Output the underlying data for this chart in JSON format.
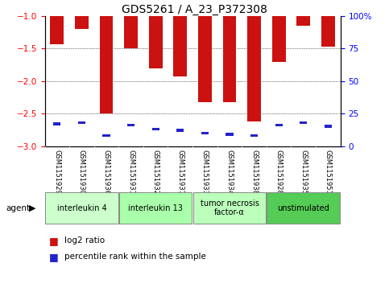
{
  "title": "GDS5261 / A_23_P372308",
  "samples": [
    "GSM1151929",
    "GSM1151930",
    "GSM1151936",
    "GSM1151931",
    "GSM1151932",
    "GSM1151937",
    "GSM1151933",
    "GSM1151934",
    "GSM1151938",
    "GSM1151928",
    "GSM1151935",
    "GSM1151951"
  ],
  "log2_ratio": [
    -1.43,
    -1.2,
    -2.5,
    -1.5,
    -1.8,
    -1.93,
    -2.32,
    -2.33,
    -2.62,
    -1.7,
    -1.15,
    -1.47
  ],
  "percentile_rank": [
    17,
    18,
    8,
    16,
    13,
    12,
    10,
    9,
    8,
    16,
    18,
    15
  ],
  "bar_color": "#cc1111",
  "pct_color": "#2222cc",
  "ylim_left": [
    -3.0,
    -1.0
  ],
  "ylim_right": [
    0,
    100
  ],
  "yticks_left": [
    -3.0,
    -2.5,
    -2.0,
    -1.5,
    -1.0
  ],
  "yticks_right": [
    0,
    25,
    50,
    75,
    100
  ],
  "groups": [
    {
      "label": "interleukin 4",
      "start": 0,
      "end": 3,
      "color": "#ccffcc"
    },
    {
      "label": "interleukin 13",
      "start": 3,
      "end": 6,
      "color": "#aaffaa"
    },
    {
      "label": "tumor necrosis\nfactor-α",
      "start": 6,
      "end": 9,
      "color": "#bbffbb"
    },
    {
      "label": "unstimulated",
      "start": 9,
      "end": 12,
      "color": "#55cc55"
    }
  ],
  "legend_red": "log2 ratio",
  "legend_blue": "percentile rank within the sample",
  "agent_label": "agent",
  "bg_color": "#cccccc",
  "plot_bg": "#ffffff"
}
